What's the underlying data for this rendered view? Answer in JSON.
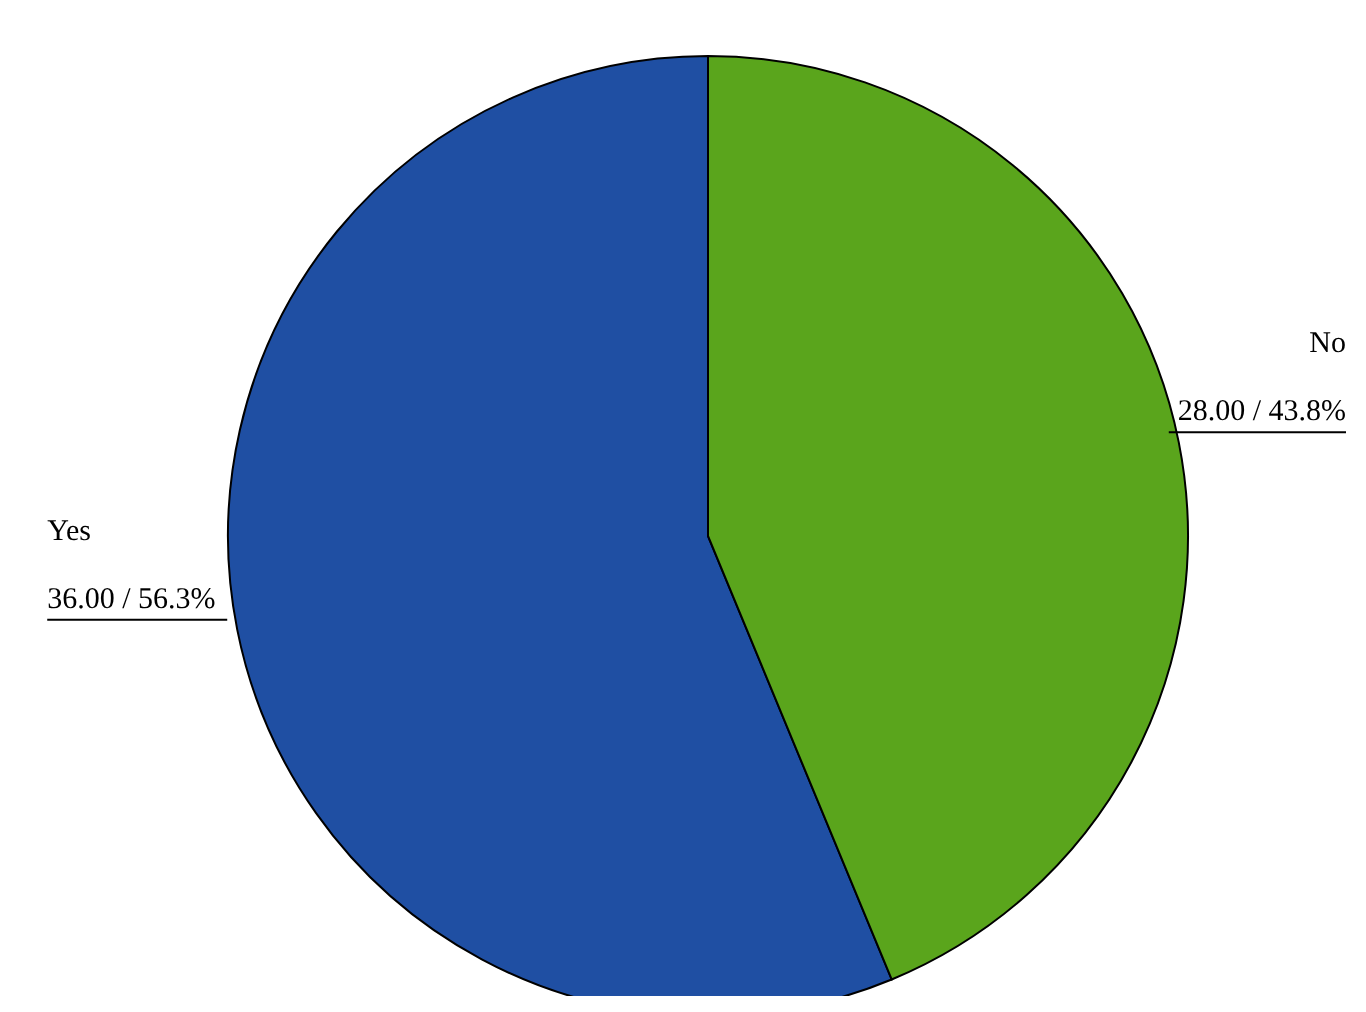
{
  "chart_data": {
    "type": "pie",
    "categories": [
      "Yes",
      "No"
    ],
    "values": [
      36,
      28
    ],
    "colors": [
      "#1f4fa3",
      "#5aa51c"
    ],
    "value_labels": [
      "36.00 / 56.3%",
      "28.00 / 43.8%"
    ]
  }
}
